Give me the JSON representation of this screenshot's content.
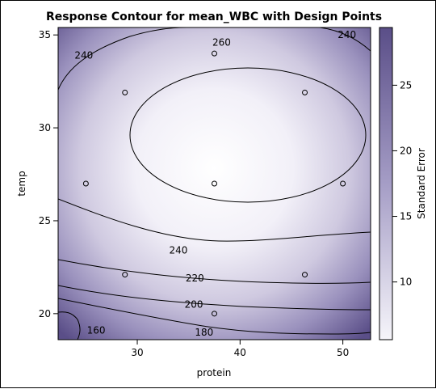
{
  "chart_data": {
    "type": "contour",
    "title": "Response Contour for mean_WBC with Design Points",
    "xlabel": "protein",
    "ylabel": "temp",
    "colorbar_label": "Standard Error",
    "xlim": [
      22.3,
      52.7
    ],
    "ylim": [
      18.6,
      35.4
    ],
    "x_ticks": [
      30,
      40,
      50
    ],
    "y_ticks": [
      20,
      25,
      30,
      35
    ],
    "colorbar_range": [
      5.6,
      29.4
    ],
    "colorbar_ticks": [
      10,
      15,
      20,
      25
    ],
    "colors": {
      "low": "#ffffff",
      "high": "#5a4e88",
      "contour_line": "#000000"
    },
    "contour_levels": [
      160,
      180,
      200,
      220,
      240,
      260
    ],
    "contour_labels": [
      {
        "text": "260",
        "x": 38.2,
        "y": 34.6
      },
      {
        "text": "240",
        "x": 24.8,
        "y": 33.9
      },
      {
        "text": "240",
        "x": 50.4,
        "y": 35.0
      },
      {
        "text": "240",
        "x": 34.0,
        "y": 23.4
      },
      {
        "text": "220",
        "x": 35.6,
        "y": 21.9
      },
      {
        "text": "200",
        "x": 35.5,
        "y": 20.5
      },
      {
        "text": "180",
        "x": 36.5,
        "y": 19.0
      },
      {
        "text": "160",
        "x": 26.0,
        "y": 19.1
      }
    ],
    "design_points": [
      {
        "protein": 28.8,
        "temp": 31.9
      },
      {
        "protein": 37.5,
        "temp": 34.0
      },
      {
        "protein": 46.3,
        "temp": 31.9
      },
      {
        "protein": 25.0,
        "temp": 27.0
      },
      {
        "protein": 37.5,
        "temp": 27.0
      },
      {
        "protein": 50.0,
        "temp": 27.0
      },
      {
        "protein": 28.8,
        "temp": 22.1
      },
      {
        "protein": 46.3,
        "temp": 22.1
      },
      {
        "protein": 37.5,
        "temp": 20.0
      }
    ]
  }
}
